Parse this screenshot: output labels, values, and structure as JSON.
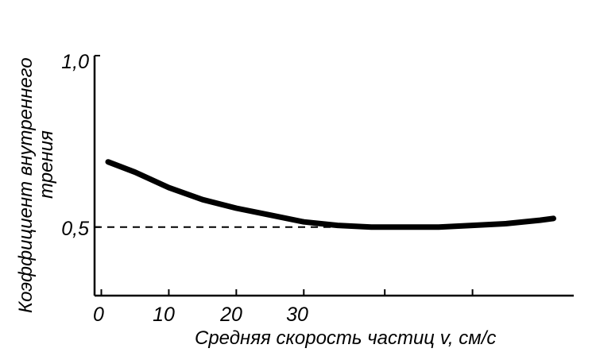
{
  "chart_data": {
    "type": "line",
    "title": "",
    "xlabel": "Средняя скорость частиц v, см/с",
    "ylabel_lines": [
      "Коэффициент внутреннего",
      "трения"
    ],
    "x_tick_labels": [
      "0",
      "10",
      "20",
      "30"
    ],
    "y_tick_labels": [
      "0,5",
      "1,0"
    ],
    "x_tick_values": [
      0,
      10,
      20,
      30,
      42,
      55
    ],
    "y_ticks": [
      0.5,
      1.0
    ],
    "xlim": [
      -1,
      70
    ],
    "ylim": [
      0.3,
      1.0
    ],
    "series": [
      {
        "x": [
          1,
          5,
          10,
          15,
          20,
          25,
          30,
          35,
          40,
          45,
          50,
          55,
          60,
          65,
          67
        ],
        "y": [
          0.69,
          0.66,
          0.615,
          0.58,
          0.555,
          0.535,
          0.515,
          0.505,
          0.5,
          0.5,
          0.5,
          0.505,
          0.51,
          0.52,
          0.525
        ]
      }
    ],
    "reference_line": {
      "y": 0.5,
      "x_start": -1,
      "x_end": 37
    },
    "grid": false,
    "legend": "none",
    "colors": {
      "line": "#000000",
      "axis": "#000000"
    }
  }
}
